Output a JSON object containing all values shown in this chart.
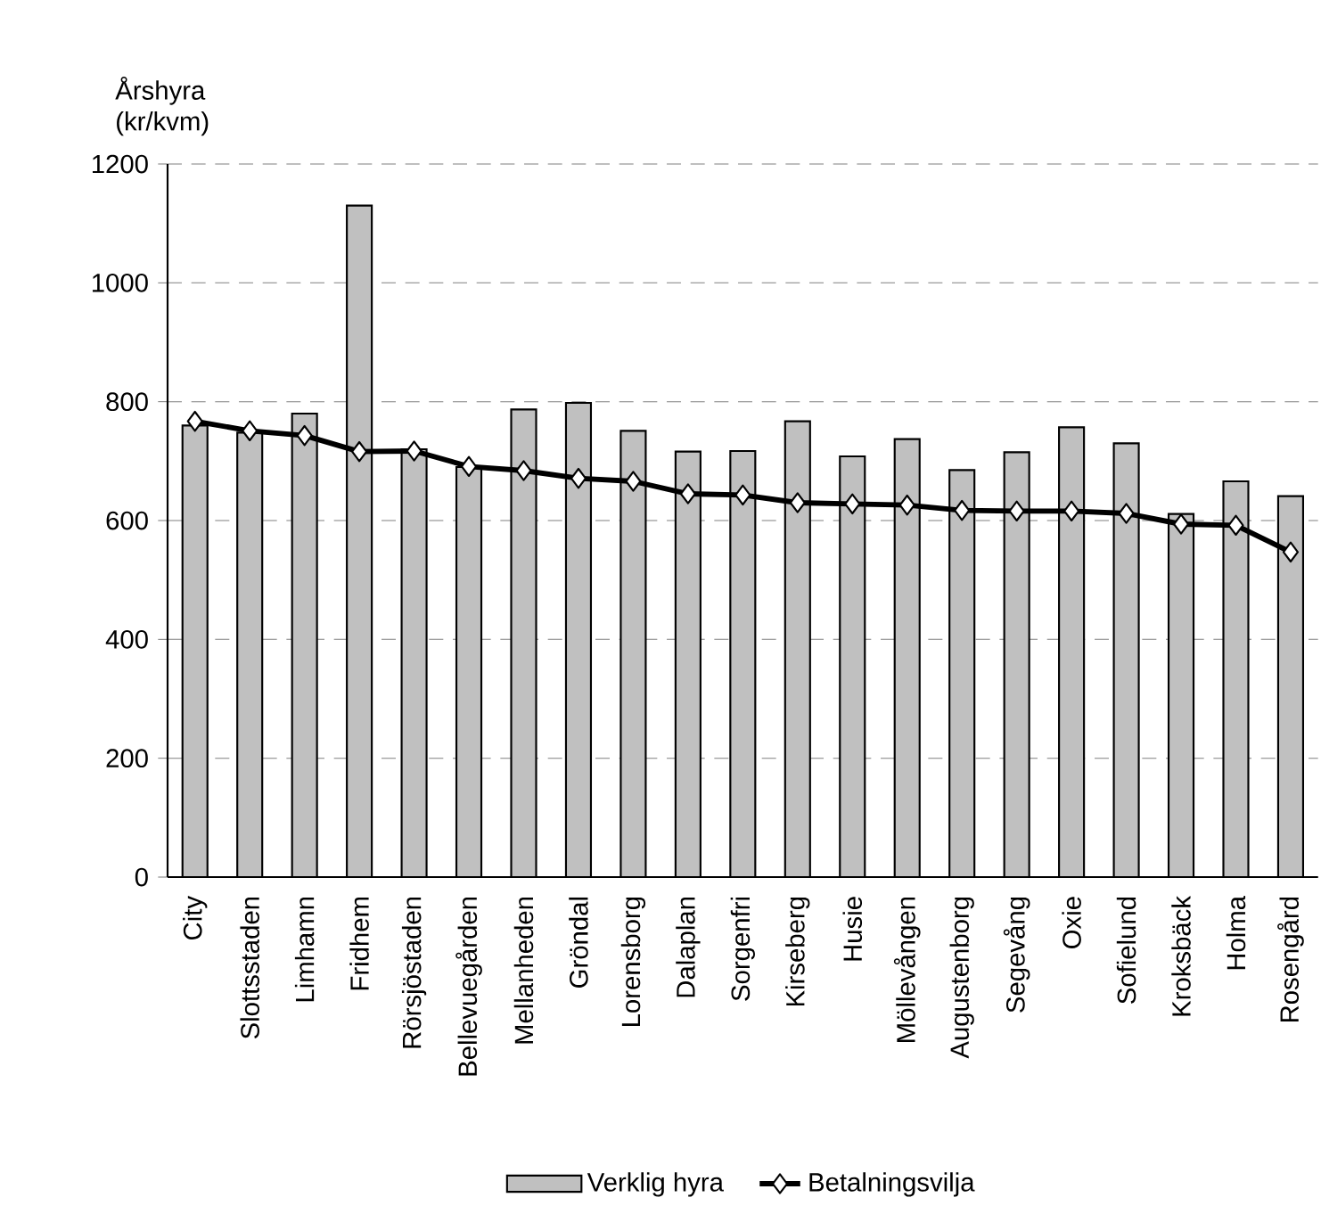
{
  "chart_data": {
    "type": "bar",
    "ylabel": "Årshyra (kr/kvm)",
    "categories": [
      "City",
      "Slottsstaden",
      "Limhamn",
      "Fridhem",
      "Rörsjöstaden",
      "Bellevuegården",
      "Mellanheden",
      "Gröndal",
      "Lorensborg",
      "Dalaplan",
      "Sorgenfri",
      "Kirseberg",
      "Husie",
      "Möllevången",
      "Augustenborg",
      "Segevång",
      "Oxie",
      "Sofielund",
      "Kroksbäck",
      "Holma",
      "Rosengård"
    ],
    "series": [
      {
        "name": "Verklig hyra",
        "color": "#c0c0c0",
        "values": [
          760,
          748,
          780,
          1130,
          720,
          690,
          787,
          798,
          751,
          716,
          717,
          767,
          708,
          737,
          685,
          715,
          757,
          730,
          611,
          666,
          641
        ]
      },
      {
        "name": "Betalningsvilja",
        "type": "line",
        "color": "#000000",
        "marker": "diamond",
        "values": [
          767,
          751,
          743,
          716,
          717,
          691,
          684,
          671,
          666,
          645,
          643,
          630,
          628,
          626,
          617,
          616,
          616,
          612,
          594,
          592,
          547
        ]
      }
    ],
    "ylim": [
      0,
      1200
    ],
    "yticks": [
      0,
      200,
      400,
      600,
      800,
      1000,
      1200
    ],
    "grid": "y",
    "legend": "bottom"
  }
}
